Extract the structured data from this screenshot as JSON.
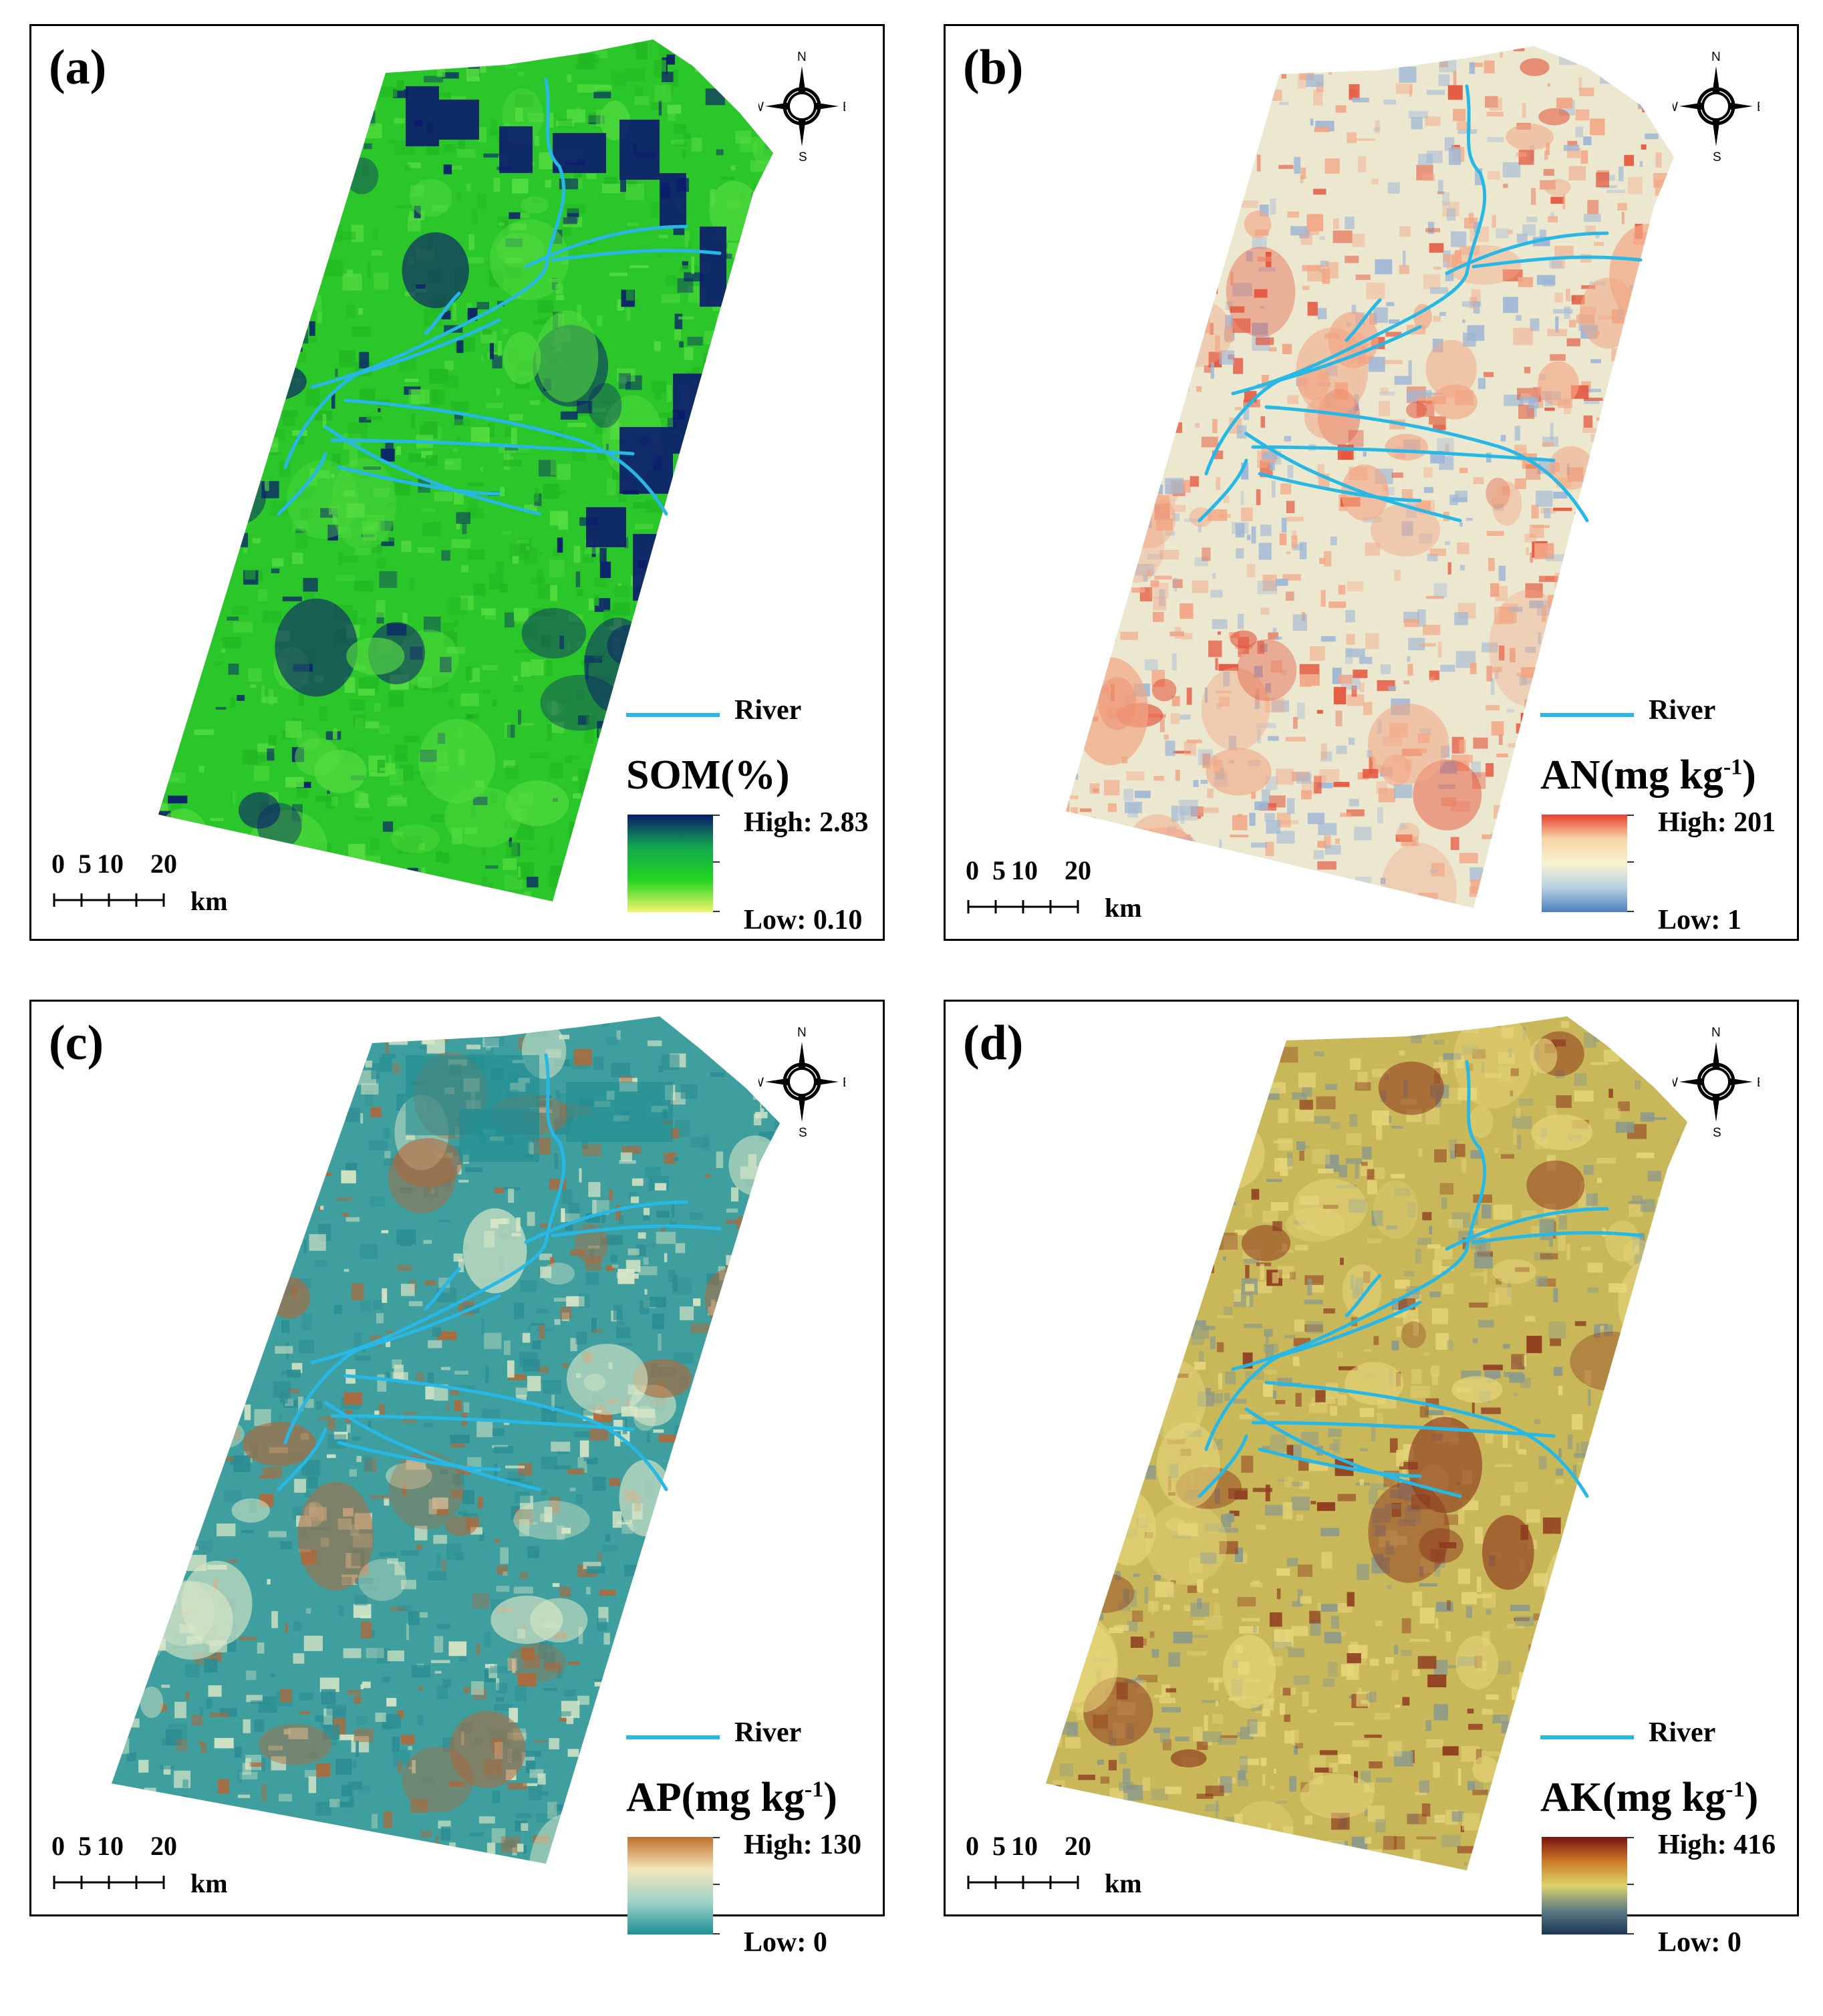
{
  "panels": [
    {
      "id": "a",
      "label": "(a)",
      "legend_title": "SOM(%)",
      "legend_title_sup": "",
      "legend_title_close": "",
      "high": "High: 2.83",
      "low": "Low: 0.10",
      "ramp": [
        "#0a1a6b",
        "#12a850",
        "#21d421",
        "#f2f56b"
      ],
      "fill_base": "#2ac62a",
      "patch_dark": "#0b1a6e",
      "patch_light": "#54dc40",
      "patch_alt": "#22b822"
    },
    {
      "id": "b",
      "label": "(b)",
      "legend_title": "AN(mg kg",
      "legend_title_sup": "-1",
      "legend_title_close": ")",
      "high": "High: 201",
      "low": "Low: 1",
      "ramp": [
        "#e8402e",
        "#f7d5a8",
        "#f7f3cf",
        "#b8cfe2",
        "#4a7fbd"
      ],
      "fill_base": "#ece7cf",
      "patch_dark": "#e4543c",
      "patch_light": "#f2a684",
      "patch_alt": "#9db6d6"
    },
    {
      "id": "c",
      "label": "(c)",
      "legend_title": "AP(mg kg",
      "legend_title_sup": "-1",
      "legend_title_close": ")",
      "high": "High: 130",
      "low": "Low: 0",
      "ramp": [
        "#c0702e",
        "#f3e6bb",
        "#9fd3c6",
        "#1c8f96"
      ],
      "fill_base": "#3f9f9f",
      "patch_dark": "#b0683a",
      "patch_light": "#d8e6c6",
      "patch_alt": "#2b8d93"
    },
    {
      "id": "d",
      "label": "(d)",
      "legend_title": "AK(mg kg",
      "legend_title_sup": "-1",
      "legend_title_close": ")",
      "high": "High: 416",
      "low": "Low: 0",
      "ramp": [
        "#7a1010",
        "#cc7b2a",
        "#dcd36a",
        "#5e7d85",
        "#1a3556"
      ],
      "fill_base": "#c9b85a",
      "patch_dark": "#8e3a1e",
      "patch_light": "#e6d67a",
      "patch_alt": "#8c9a8a"
    }
  ],
  "compass": {
    "n": "N",
    "s": "S",
    "e": "E",
    "w": "W"
  },
  "river_label": "River",
  "river_color": "#27b8e6",
  "scale": {
    "t0": "0",
    "t1": "5",
    "t2": "10",
    "t3": "20",
    "unit": "km"
  }
}
